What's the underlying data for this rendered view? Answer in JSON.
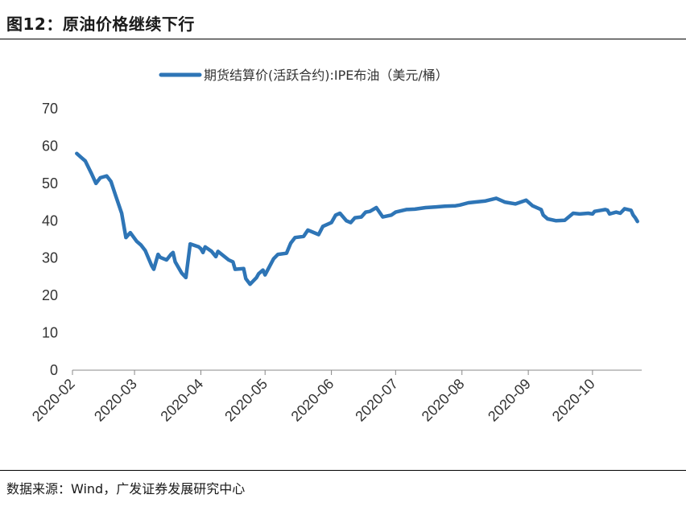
{
  "figure_title": "图12：原油价格继续下行",
  "source_text": "数据来源：Wind，广发证券发展研究中心",
  "colors": {
    "series": "#2e75b6",
    "axis": "#888888",
    "text": "#333333"
  },
  "chart_data": {
    "type": "line",
    "title": "",
    "legend": {
      "position": "top-center"
    },
    "series": [
      {
        "name": "期货结算价(活跃合约):IPE布油（美元/桶）",
        "x": [
          "2020-02-03",
          "2020-02-05",
          "2020-02-07",
          "2020-02-10",
          "2020-02-12",
          "2020-02-14",
          "2020-02-17",
          "2020-02-19",
          "2020-02-21",
          "2020-02-24",
          "2020-02-26",
          "2020-02-28",
          "2020-03-02",
          "2020-03-04",
          "2020-03-06",
          "2020-03-09",
          "2020-03-10",
          "2020-03-12",
          "2020-03-13",
          "2020-03-16",
          "2020-03-18",
          "2020-03-19",
          "2020-03-20",
          "2020-03-23",
          "2020-03-25",
          "2020-03-27",
          "2020-03-31",
          "2020-04-01",
          "2020-04-02",
          "2020-04-03",
          "2020-04-06",
          "2020-04-08",
          "2020-04-09",
          "2020-04-14",
          "2020-04-16",
          "2020-04-17",
          "2020-04-21",
          "2020-04-22",
          "2020-04-24",
          "2020-04-27",
          "2020-04-28",
          "2020-04-30",
          "2020-05-01",
          "2020-05-05",
          "2020-05-07",
          "2020-05-11",
          "2020-05-13",
          "2020-05-15",
          "2020-05-19",
          "2020-05-21",
          "2020-05-26",
          "2020-05-28",
          "2020-06-01",
          "2020-06-03",
          "2020-06-05",
          "2020-06-08",
          "2020-06-10",
          "2020-06-12",
          "2020-06-15",
          "2020-06-17",
          "2020-06-19",
          "2020-06-22",
          "2020-06-25",
          "2020-06-29",
          "2020-07-01",
          "2020-07-06",
          "2020-07-10",
          "2020-07-15",
          "2020-07-20",
          "2020-07-24",
          "2020-07-29",
          "2020-07-31",
          "2020-08-04",
          "2020-08-07",
          "2020-08-12",
          "2020-08-17",
          "2020-08-21",
          "2020-08-26",
          "2020-08-31",
          "2020-09-03",
          "2020-09-07",
          "2020-09-08",
          "2020-09-10",
          "2020-09-14",
          "2020-09-18",
          "2020-09-22",
          "2020-09-25",
          "2020-09-29",
          "2020-10-01",
          "2020-10-02",
          "2020-10-05",
          "2020-10-07",
          "2020-10-08",
          "2020-10-09",
          "2020-10-12",
          "2020-10-14",
          "2020-10-16",
          "2020-10-19",
          "2020-10-20",
          "2020-10-21",
          "2020-10-22"
        ],
        "y": [
          58,
          57,
          56,
          52.5,
          50,
          51.5,
          52,
          50.5,
          47,
          42,
          35.5,
          36.8,
          34.5,
          33.5,
          32,
          28,
          27,
          31,
          30.2,
          29.5,
          31,
          31.5,
          29,
          26,
          24.8,
          33.8,
          33,
          32.5,
          31.5,
          33,
          31.8,
          30.4,
          31.8,
          29.5,
          29,
          27,
          27.2,
          24.5,
          23,
          24.8,
          25.8,
          26.8,
          25.5,
          29.8,
          31,
          31.3,
          34,
          35.5,
          35.8,
          37.5,
          36.3,
          38.5,
          39.5,
          41.5,
          42,
          40,
          39.5,
          40.8,
          41,
          42.3,
          42.5,
          43.5,
          41,
          41.5,
          42.3,
          43,
          43.1,
          43.5,
          43.7,
          43.9,
          44,
          44.2,
          44.8,
          45,
          45.3,
          46,
          45,
          44.5,
          45.5,
          44,
          43,
          41.5,
          40.5,
          40,
          40.1,
          42,
          41.8,
          42,
          41.8,
          42.5,
          42.8,
          43,
          42.8,
          41.8,
          42.3,
          42,
          43.2,
          42.8,
          41.5,
          40.8,
          39.8
        ]
      }
    ],
    "x_ticks": [
      "2020-02",
      "2020-03",
      "2020-04",
      "2020-05",
      "2020-06",
      "2020-07",
      "2020-08",
      "2020-09",
      "2020-10"
    ],
    "y_ticks": [
      0,
      10,
      20,
      30,
      40,
      50,
      60,
      70
    ],
    "ylim": [
      0,
      70
    ],
    "xlim": [
      "2020-02-01",
      "2020-10-24"
    ],
    "xlabel": "",
    "ylabel": "",
    "grid": false
  }
}
